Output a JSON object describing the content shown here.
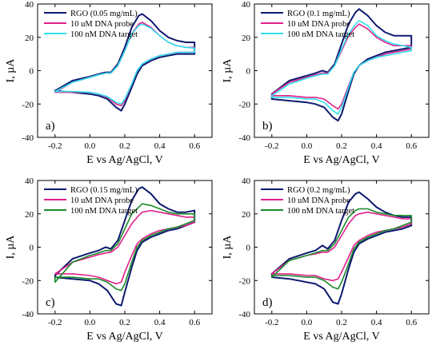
{
  "figure": {
    "x_axis_label": "E vs Ag/AgCl, V",
    "y_axis_label": "I, µA"
  },
  "chart_data": [
    {
      "type": "line",
      "panel_label": "a)",
      "xlim": [
        -0.3,
        0.7
      ],
      "ylim": [
        -40,
        40
      ],
      "x_ticks": [
        -0.2,
        0.0,
        0.2,
        0.4,
        0.6
      ],
      "x_tick_labels": [
        "-0.2",
        "0.0",
        "0.2",
        "0.4",
        "0.6"
      ],
      "y_ticks": [
        -40,
        -20,
        0,
        20,
        40
      ],
      "y_tick_labels": [
        "-40",
        "-20",
        "0",
        "20",
        "40"
      ],
      "grid": false,
      "legend_position": "top-left",
      "series": [
        {
          "name": "RGO (0.05 mg/mL)",
          "color": "#0d1a6e",
          "x": [
            -0.2,
            -0.1,
            0.0,
            0.05,
            0.09,
            0.12,
            0.16,
            0.2,
            0.24,
            0.28,
            0.3,
            0.35,
            0.4,
            0.45,
            0.5,
            0.55,
            0.6,
            0.6,
            0.55,
            0.5,
            0.45,
            0.4,
            0.35,
            0.3,
            0.27,
            0.24,
            0.2,
            0.18,
            0.15,
            0.1,
            0.05,
            0.0,
            -0.1,
            -0.2
          ],
          "y": [
            -12,
            -6,
            -3.5,
            -2,
            -1,
            -1,
            4,
            14,
            26,
            33,
            34,
            30,
            24,
            20,
            18,
            17,
            17,
            10,
            10,
            10,
            9,
            8,
            6,
            3,
            -2,
            -10,
            -20,
            -24,
            -22,
            -17,
            -15,
            -14,
            -13,
            -12
          ]
        },
        {
          "name": "10 uM DNA probe",
          "color": "#e0208a",
          "x": [
            -0.2,
            -0.1,
            0.0,
            0.05,
            0.09,
            0.12,
            0.16,
            0.2,
            0.24,
            0.28,
            0.3,
            0.35,
            0.4,
            0.45,
            0.5,
            0.55,
            0.6,
            0.6,
            0.55,
            0.5,
            0.45,
            0.4,
            0.35,
            0.3,
            0.27,
            0.24,
            0.2,
            0.18,
            0.15,
            0.1,
            0.05,
            0.0,
            -0.1,
            -0.2
          ],
          "y": [
            -13,
            -7,
            -4,
            -2.5,
            -1.5,
            -1.5,
            3,
            12,
            22,
            28,
            29,
            26,
            21,
            17,
            15,
            14,
            14,
            11,
            11,
            11,
            10,
            9,
            7,
            4,
            0,
            -8,
            -18,
            -21,
            -20,
            -16,
            -14,
            -13,
            -13,
            -13
          ]
        },
        {
          "name": "100 nM DNA target",
          "color": "#2ee0ee",
          "x": [
            -0.2,
            -0.1,
            0.0,
            0.05,
            0.09,
            0.12,
            0.16,
            0.2,
            0.24,
            0.28,
            0.3,
            0.35,
            0.4,
            0.45,
            0.5,
            0.55,
            0.6,
            0.6,
            0.55,
            0.5,
            0.45,
            0.4,
            0.35,
            0.3,
            0.27,
            0.24,
            0.2,
            0.18,
            0.15,
            0.1,
            0.05,
            0.0,
            -0.1,
            -0.2
          ],
          "y": [
            -12.5,
            -7,
            -4,
            -2.5,
            -1.5,
            -1.5,
            3,
            12,
            22,
            27,
            28,
            25.5,
            21,
            17,
            15,
            14,
            13.5,
            11,
            11,
            11,
            10,
            9,
            7,
            4,
            0,
            -8,
            -17,
            -20,
            -19,
            -15.5,
            -14,
            -13,
            -12.5,
            -12.5
          ]
        }
      ]
    },
    {
      "type": "line",
      "panel_label": "b)",
      "xlim": [
        -0.3,
        0.7
      ],
      "ylim": [
        -40,
        40
      ],
      "x_ticks": [
        -0.2,
        0.0,
        0.2,
        0.4,
        0.6
      ],
      "x_tick_labels": [
        "-0.2",
        "0.0",
        "0.2",
        "0.4",
        "0.6"
      ],
      "y_ticks": [
        -40,
        -20,
        0,
        20,
        40
      ],
      "y_tick_labels": [
        "-40",
        "-20",
        "0",
        "20",
        "40"
      ],
      "grid": false,
      "legend_position": "top-left",
      "series": [
        {
          "name": "RGO (0.1 mg/mL)",
          "color": "#0d1a6e",
          "x": [
            -0.2,
            -0.1,
            0.0,
            0.05,
            0.09,
            0.12,
            0.16,
            0.2,
            0.24,
            0.28,
            0.3,
            0.35,
            0.4,
            0.45,
            0.5,
            0.55,
            0.6,
            0.6,
            0.55,
            0.5,
            0.45,
            0.4,
            0.35,
            0.3,
            0.27,
            0.24,
            0.2,
            0.18,
            0.15,
            0.1,
            0.05,
            0.0,
            -0.1,
            -0.2
          ],
          "y": [
            -14,
            -6,
            -3,
            -1.5,
            0,
            -1,
            4,
            16,
            28,
            35,
            37,
            33,
            27,
            23,
            21,
            21,
            21,
            14,
            13,
            12,
            11,
            9,
            7,
            3,
            -2,
            -12,
            -26,
            -30,
            -28,
            -22,
            -20,
            -19,
            -18,
            -17
          ]
        },
        {
          "name": "10 uM DNA probe",
          "color": "#e0208a",
          "x": [
            -0.2,
            -0.1,
            0.0,
            0.05,
            0.09,
            0.12,
            0.16,
            0.2,
            0.24,
            0.28,
            0.3,
            0.35,
            0.4,
            0.45,
            0.5,
            0.55,
            0.6,
            0.6,
            0.55,
            0.5,
            0.45,
            0.4,
            0.35,
            0.3,
            0.27,
            0.24,
            0.2,
            0.18,
            0.15,
            0.1,
            0.05,
            0.0,
            -0.1,
            -0.2
          ],
          "y": [
            -14,
            -7,
            -4,
            -2.5,
            -1.5,
            -1.5,
            3,
            12,
            21,
            26,
            28,
            25,
            20,
            17,
            15,
            15,
            15,
            13,
            12,
            11,
            10,
            8,
            6,
            3,
            -1,
            -9,
            -20,
            -23,
            -21,
            -17,
            -16,
            -16,
            -15,
            -15
          ]
        },
        {
          "name": "100 nM DNA target",
          "color": "#2ee0ee",
          "x": [
            -0.2,
            -0.1,
            0.0,
            0.05,
            0.09,
            0.12,
            0.16,
            0.2,
            0.24,
            0.28,
            0.3,
            0.35,
            0.4,
            0.45,
            0.5,
            0.55,
            0.6,
            0.6,
            0.55,
            0.5,
            0.45,
            0.4,
            0.35,
            0.3,
            0.27,
            0.24,
            0.2,
            0.18,
            0.15,
            0.1,
            0.05,
            0.0,
            -0.1,
            -0.2
          ],
          "y": [
            -15,
            -8,
            -4.5,
            -3,
            -2,
            -2,
            3,
            13,
            22,
            28,
            30,
            27,
            21,
            18,
            16,
            15,
            14,
            12,
            11,
            10,
            9,
            8,
            6,
            3,
            -1,
            -10,
            -22,
            -26,
            -24,
            -19,
            -17,
            -17,
            -16,
            -16
          ]
        }
      ]
    },
    {
      "type": "line",
      "panel_label": "c)",
      "xlim": [
        -0.3,
        0.7
      ],
      "ylim": [
        -40,
        40
      ],
      "x_ticks": [
        -0.2,
        0.0,
        0.2,
        0.4,
        0.6
      ],
      "x_tick_labels": [
        "-0.2",
        "0.0",
        "0.2",
        "0.4",
        "0.6"
      ],
      "y_ticks": [
        -40,
        -20,
        0,
        20,
        40
      ],
      "y_tick_labels": [
        "-40",
        "-20",
        "0",
        "20",
        "40"
      ],
      "grid": false,
      "legend_position": "top-left",
      "series": [
        {
          "name": "RGO (0.15 mg/mL)",
          "color": "#0d1a6e",
          "x": [
            -0.2,
            -0.1,
            0.0,
            0.05,
            0.09,
            0.12,
            0.16,
            0.2,
            0.24,
            0.28,
            0.3,
            0.35,
            0.4,
            0.45,
            0.5,
            0.55,
            0.6,
            0.6,
            0.55,
            0.5,
            0.45,
            0.4,
            0.35,
            0.3,
            0.27,
            0.24,
            0.2,
            0.18,
            0.15,
            0.1,
            0.05,
            0.0,
            -0.1,
            -0.2
          ],
          "y": [
            -17,
            -7,
            -3.5,
            -2,
            0,
            -1,
            4,
            16,
            28,
            35,
            36,
            32,
            26,
            23,
            21,
            21,
            22,
            15,
            13,
            11,
            10,
            8,
            6,
            3,
            -2,
            -12,
            -27,
            -35,
            -34,
            -26,
            -22,
            -20,
            -19,
            -18
          ]
        },
        {
          "name": "10 uM DNA probe",
          "color": "#e0208a",
          "x": [
            -0.2,
            -0.1,
            0.0,
            0.05,
            0.09,
            0.12,
            0.16,
            0.2,
            0.24,
            0.28,
            0.3,
            0.35,
            0.4,
            0.45,
            0.5,
            0.55,
            0.6,
            0.6,
            0.55,
            0.5,
            0.45,
            0.4,
            0.35,
            0.3,
            0.27,
            0.24,
            0.2,
            0.18,
            0.15,
            0.1,
            0.05,
            0.0,
            -0.1,
            -0.2
          ],
          "y": [
            -16,
            -9,
            -6,
            -4.5,
            -3.5,
            -3,
            0,
            7,
            14,
            19,
            21,
            22,
            21,
            20,
            19,
            18,
            18,
            15,
            13,
            12,
            11,
            10,
            8,
            5,
            2,
            -5,
            -15,
            -21,
            -22,
            -20,
            -18,
            -17,
            -16,
            -16
          ]
        },
        {
          "name": "100 nM DNA target",
          "color": "#1a8a2a",
          "x": [
            -0.2,
            -0.1,
            0.0,
            0.05,
            0.09,
            0.12,
            0.16,
            0.2,
            0.24,
            0.28,
            0.3,
            0.35,
            0.4,
            0.45,
            0.5,
            0.55,
            0.6,
            0.6,
            0.55,
            0.5,
            0.45,
            0.4,
            0.35,
            0.3,
            0.27,
            0.24,
            0.2,
            0.18,
            0.15,
            0.1,
            0.05,
            0.0,
            -0.1,
            -0.2
          ],
          "y": [
            -21,
            -9,
            -5,
            -3.5,
            -2,
            -2,
            2,
            11,
            20,
            24,
            26,
            25,
            23,
            21,
            20,
            20,
            20,
            16,
            14,
            12,
            11,
            9,
            7,
            4,
            0,
            -9,
            -22,
            -26,
            -25,
            -21,
            -19,
            -19,
            -18,
            -18
          ]
        }
      ]
    },
    {
      "type": "line",
      "panel_label": "d)",
      "xlim": [
        -0.3,
        0.7
      ],
      "ylim": [
        -40,
        40
      ],
      "x_ticks": [
        -0.2,
        0.0,
        0.2,
        0.4,
        0.6
      ],
      "x_tick_labels": [
        "-0.2",
        "0.0",
        "0.2",
        "0.4",
        "0.6"
      ],
      "y_ticks": [
        -40,
        -20,
        0,
        20,
        40
      ],
      "y_tick_labels": [
        "-40",
        "-20",
        "0",
        "20",
        "40"
      ],
      "grid": false,
      "legend_position": "top-left",
      "series": [
        {
          "name": "RGO (0.2 mg/mL)",
          "color": "#0d1a6e",
          "x": [
            -0.2,
            -0.1,
            0.0,
            0.05,
            0.09,
            0.12,
            0.16,
            0.2,
            0.24,
            0.28,
            0.3,
            0.35,
            0.4,
            0.45,
            0.5,
            0.55,
            0.6,
            0.6,
            0.55,
            0.5,
            0.45,
            0.4,
            0.35,
            0.3,
            0.27,
            0.24,
            0.2,
            0.18,
            0.15,
            0.1,
            0.05,
            0.0,
            -0.1,
            -0.2
          ],
          "y": [
            -16,
            -7,
            -3.5,
            -2,
            1,
            -1,
            4,
            16,
            27,
            32,
            33,
            29,
            24,
            21,
            19,
            18,
            18,
            13,
            11,
            10,
            9,
            7,
            5,
            2,
            -3,
            -13,
            -28,
            -34,
            -33,
            -25,
            -22,
            -21,
            -19,
            -18
          ]
        },
        {
          "name": "10 uM DNA probe",
          "color": "#e0208a",
          "x": [
            -0.2,
            -0.1,
            0.0,
            0.05,
            0.09,
            0.12,
            0.16,
            0.2,
            0.24,
            0.28,
            0.3,
            0.35,
            0.4,
            0.45,
            0.5,
            0.55,
            0.6,
            0.6,
            0.55,
            0.5,
            0.45,
            0.4,
            0.35,
            0.3,
            0.27,
            0.24,
            0.2,
            0.18,
            0.15,
            0.1,
            0.05,
            0.0,
            -0.1,
            -0.2
          ],
          "y": [
            -16,
            -8,
            -5,
            -4,
            -3,
            -3,
            0,
            7,
            14,
            19,
            20,
            21,
            20,
            19,
            18,
            17,
            17,
            14,
            12,
            11,
            10,
            9,
            7,
            4,
            1,
            -6,
            -15,
            -19,
            -20,
            -19,
            -17,
            -17,
            -16,
            -16
          ]
        },
        {
          "name": "100 nM DNA target",
          "color": "#1a8a2a",
          "x": [
            -0.2,
            -0.1,
            0.0,
            0.05,
            0.09,
            0.12,
            0.16,
            0.2,
            0.24,
            0.28,
            0.3,
            0.35,
            0.4,
            0.45,
            0.5,
            0.55,
            0.6,
            0.6,
            0.55,
            0.5,
            0.45,
            0.4,
            0.35,
            0.3,
            0.27,
            0.24,
            0.2,
            0.18,
            0.15,
            0.1,
            0.05,
            0.0,
            -0.1,
            -0.2
          ],
          "y": [
            -18,
            -8,
            -5,
            -3.5,
            -2,
            -2,
            2,
            10,
            18,
            22,
            23,
            23,
            21,
            20,
            19,
            19,
            19,
            15,
            13,
            11,
            10,
            8,
            6,
            3,
            -1,
            -10,
            -21,
            -25,
            -24,
            -20,
            -18,
            -18,
            -17,
            -17
          ]
        }
      ]
    }
  ]
}
